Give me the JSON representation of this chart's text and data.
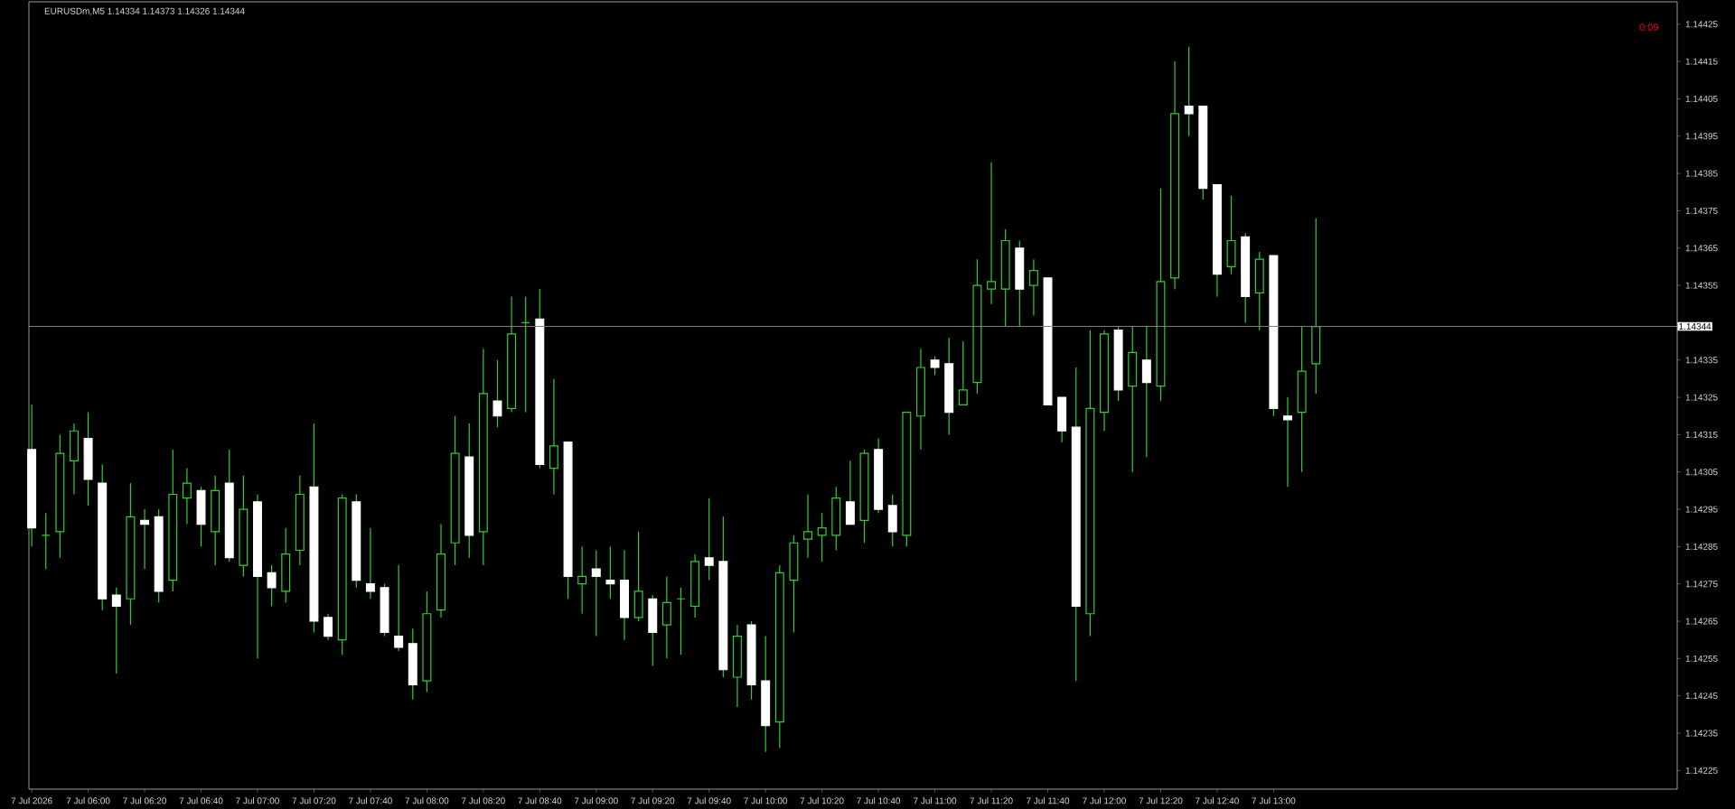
{
  "chart_data": {
    "type": "candlestick",
    "title": "EURUSDm,M5 1.14334 1.14373 1.14326 1.14344",
    "color": "#32cd32",
    "colors": [
      "#ffffff",
      "#32cd32",
      "#32cd32",
      "#32cd32",
      "#ffffff",
      "#ffffff",
      "#ffffff",
      "#32cd32",
      "#ffffff",
      "#ffffff",
      "#32cd32",
      "#32cd32",
      "#ffffff",
      "#32cd32",
      "#ffffff",
      "#32cd32",
      "#ffffff",
      "#ffffff",
      "#32cd32",
      "#32cd32",
      "#ffffff",
      "#ffffff",
      "#32cd32",
      "#ffffff",
      "#ffffff",
      "#ffffff",
      "#ffffff",
      "#ffffff",
      "#32cd32",
      "#32cd32",
      "#32cd32",
      "#ffffff",
      "#32cd32",
      "#ffffff",
      "#32cd32",
      "#32cd32",
      "#ffffff",
      "#32cd32",
      "#ffffff",
      "#32cd32",
      "#ffffff",
      "#ffffff",
      "#ffffff",
      "#32cd32",
      "#ffffff",
      "#32cd32",
      "#32cd32",
      "#32cd32",
      "#ffffff",
      "#ffffff",
      "#32cd32",
      "#ffffff",
      "#ffffff",
      "#32cd32",
      "#32cd32",
      "#32cd32",
      "#32cd32",
      "#32cd32",
      "#ffffff",
      "#32cd32",
      "#ffffff",
      "#ffffff",
      "#32cd32",
      "#32cd32",
      "#ffffff",
      "#ffffff",
      "#32cd32",
      "#32cd32",
      "#32cd32",
      "#32cd32",
      "#ffffff",
      "#32cd32",
      "#ffffff",
      "#ffffff",
      "#ffffff",
      "#32cd32",
      "#32cd32",
      "#ffffff",
      "#32cd32",
      "#ffffff",
      "#32cd32",
      "#32cd32",
      "#ffffff",
      "#ffffff",
      "#ffffff",
      "#32cd32",
      "#ffffff",
      "#32cd32",
      "#ffffff",
      "#ffffff",
      "#32cd32",
      "#32cd32"
    ],
    "x": [
      "2026-07-07T05:40",
      "2026-07-07T05:45",
      "2026-07-07T05:50",
      "2026-07-07T05:55",
      "2026-07-07T06:00",
      "2026-07-07T06:05",
      "2026-07-07T06:10",
      "2026-07-07T06:15",
      "2026-07-07T06:20",
      "2026-07-07T06:25",
      "2026-07-07T06:30",
      "2026-07-07T06:35",
      "2026-07-07T06:40",
      "2026-07-07T06:45",
      "2026-07-07T06:50",
      "2026-07-07T06:55",
      "2026-07-07T07:00",
      "2026-07-07T07:05",
      "2026-07-07T07:10",
      "2026-07-07T07:15",
      "2026-07-07T07:20",
      "2026-07-07T07:25",
      "2026-07-07T07:30",
      "2026-07-07T07:35",
      "2026-07-07T07:40",
      "2026-07-07T07:45",
      "2026-07-07T07:50",
      "2026-07-07T07:55",
      "2026-07-07T08:00",
      "2026-07-07T08:05",
      "2026-07-07T08:10",
      "2026-07-07T08:15",
      "2026-07-07T08:20",
      "2026-07-07T08:25",
      "2026-07-07T08:30",
      "2026-07-07T08:35",
      "2026-07-07T08:40",
      "2026-07-07T08:45",
      "2026-07-07T08:50",
      "2026-07-07T08:55",
      "2026-07-07T09:00",
      "2026-07-07T09:05",
      "2026-07-07T09:10",
      "2026-07-07T09:15",
      "2026-07-07T09:20",
      "2026-07-07T09:25",
      "2026-07-07T09:30",
      "2026-07-07T09:35",
      "2026-07-07T09:40",
      "2026-07-07T09:45",
      "2026-07-07T09:50",
      "2026-07-07T09:55",
      "2026-07-07T10:00",
      "2026-07-07T10:05",
      "2026-07-07T10:10",
      "2026-07-07T10:15",
      "2026-07-07T10:20",
      "2026-07-07T10:25",
      "2026-07-07T10:30",
      "2026-07-07T10:35",
      "2026-07-07T10:40",
      "2026-07-07T10:45",
      "2026-07-07T10:50",
      "2026-07-07T10:55",
      "2026-07-07T11:00",
      "2026-07-07T11:05",
      "2026-07-07T11:10",
      "2026-07-07T11:15",
      "2026-07-07T11:20",
      "2026-07-07T11:25",
      "2026-07-07T11:30",
      "2026-07-07T11:35",
      "2026-07-07T11:40",
      "2026-07-07T11:45",
      "2026-07-07T11:50",
      "2026-07-07T11:55",
      "2026-07-07T12:00",
      "2026-07-07T12:05",
      "2026-07-07T12:10",
      "2026-07-07T12:15",
      "2026-07-07T12:20",
      "2026-07-07T12:25",
      "2026-07-07T12:30",
      "2026-07-07T12:35",
      "2026-07-07T12:40",
      "2026-07-07T12:45",
      "2026-07-07T12:50",
      "2026-07-07T12:55",
      "2026-07-07T13:00",
      "2026-07-07T13:05",
      "2026-07-07T13:10",
      "2026-07-07T13:15"
    ],
    "ohlc": [
      [
        1.14311,
        1.14323,
        1.14285,
        1.1429
      ],
      [
        1.14288,
        1.14294,
        1.14279,
        1.14288
      ],
      [
        1.14289,
        1.14315,
        1.14282,
        1.1431
      ],
      [
        1.14308,
        1.14318,
        1.14299,
        1.14316
      ],
      [
        1.14314,
        1.14321,
        1.14296,
        1.14303
      ],
      [
        1.14302,
        1.14307,
        1.14268,
        1.14271
      ],
      [
        1.14272,
        1.14274,
        1.14251,
        1.14269
      ],
      [
        1.14271,
        1.14302,
        1.14264,
        1.14293
      ],
      [
        1.14292,
        1.14295,
        1.14279,
        1.14291
      ],
      [
        1.14293,
        1.14295,
        1.1427,
        1.14273
      ],
      [
        1.14276,
        1.14311,
        1.14273,
        1.14299
      ],
      [
        1.14298,
        1.14306,
        1.14291,
        1.14302
      ],
      [
        1.143,
        1.14301,
        1.14285,
        1.14291
      ],
      [
        1.14289,
        1.14304,
        1.1428,
        1.143
      ],
      [
        1.14302,
        1.14311,
        1.14281,
        1.14282
      ],
      [
        1.1428,
        1.14304,
        1.14277,
        1.14295
      ],
      [
        1.14297,
        1.14299,
        1.14255,
        1.14277
      ],
      [
        1.14278,
        1.1428,
        1.14269,
        1.14274
      ],
      [
        1.14273,
        1.1429,
        1.1427,
        1.14283
      ],
      [
        1.14284,
        1.14304,
        1.1428,
        1.14299
      ],
      [
        1.14301,
        1.14318,
        1.14262,
        1.14265
      ],
      [
        1.14266,
        1.14267,
        1.1426,
        1.14261
      ],
      [
        1.1426,
        1.14299,
        1.14256,
        1.14298
      ],
      [
        1.14297,
        1.14299,
        1.14274,
        1.14276
      ],
      [
        1.14275,
        1.1429,
        1.14271,
        1.14273
      ],
      [
        1.14274,
        1.14275,
        1.14261,
        1.14262
      ],
      [
        1.14261,
        1.1428,
        1.14257,
        1.14258
      ],
      [
        1.14259,
        1.14263,
        1.14244,
        1.14248
      ],
      [
        1.14249,
        1.14273,
        1.14246,
        1.14267
      ],
      [
        1.14268,
        1.14291,
        1.14266,
        1.14283
      ],
      [
        1.14286,
        1.1432,
        1.1428,
        1.1431
      ],
      [
        1.14309,
        1.14318,
        1.14282,
        1.14288
      ],
      [
        1.14289,
        1.14338,
        1.1428,
        1.14326
      ],
      [
        1.14324,
        1.14335,
        1.14317,
        1.1432
      ],
      [
        1.14322,
        1.14352,
        1.14321,
        1.14342
      ],
      [
        1.14345,
        1.14352,
        1.14321,
        1.14345
      ],
      [
        1.14346,
        1.14354,
        1.14306,
        1.14307
      ],
      [
        1.14306,
        1.1433,
        1.14299,
        1.14312
      ],
      [
        1.14313,
        1.14313,
        1.14271,
        1.14277
      ],
      [
        1.14275,
        1.14285,
        1.14267,
        1.14277
      ],
      [
        1.14279,
        1.14284,
        1.14261,
        1.14277
      ],
      [
        1.14276,
        1.14285,
        1.14271,
        1.14275
      ],
      [
        1.14276,
        1.14284,
        1.1426,
        1.14266
      ],
      [
        1.14266,
        1.14289,
        1.14265,
        1.14273
      ],
      [
        1.14271,
        1.14272,
        1.14253,
        1.14262
      ],
      [
        1.14264,
        1.14277,
        1.14255,
        1.1427
      ],
      [
        1.14271,
        1.14274,
        1.14256,
        1.14271
      ],
      [
        1.14269,
        1.14283,
        1.14266,
        1.14281
      ],
      [
        1.14282,
        1.14298,
        1.14276,
        1.1428
      ],
      [
        1.14281,
        1.14293,
        1.1425,
        1.14252
      ],
      [
        1.1425,
        1.14264,
        1.14242,
        1.14261
      ],
      [
        1.14264,
        1.14265,
        1.14244,
        1.14248
      ],
      [
        1.14249,
        1.14261,
        1.1423,
        1.14237
      ],
      [
        1.14238,
        1.1428,
        1.14231,
        1.14278
      ],
      [
        1.14276,
        1.14288,
        1.14262,
        1.14286
      ],
      [
        1.14287,
        1.14299,
        1.14282,
        1.14289
      ],
      [
        1.14288,
        1.14294,
        1.14281,
        1.1429
      ],
      [
        1.14288,
        1.14301,
        1.14284,
        1.14298
      ],
      [
        1.14297,
        1.14308,
        1.14291,
        1.14291
      ],
      [
        1.14292,
        1.14311,
        1.14286,
        1.1431
      ],
      [
        1.14311,
        1.14314,
        1.14294,
        1.14295
      ],
      [
        1.14296,
        1.14299,
        1.14285,
        1.14289
      ],
      [
        1.14288,
        1.14321,
        1.14285,
        1.14321
      ],
      [
        1.1432,
        1.14338,
        1.14311,
        1.14333
      ],
      [
        1.14335,
        1.14336,
        1.14331,
        1.14333
      ],
      [
        1.14334,
        1.14341,
        1.14315,
        1.14321
      ],
      [
        1.14323,
        1.1434,
        1.14323,
        1.14327
      ],
      [
        1.14329,
        1.14362,
        1.14326,
        1.14355
      ],
      [
        1.14354,
        1.14388,
        1.1435,
        1.14356
      ],
      [
        1.14354,
        1.1437,
        1.14344,
        1.14367
      ],
      [
        1.14365,
        1.14367,
        1.14344,
        1.14354
      ],
      [
        1.14355,
        1.14362,
        1.14347,
        1.14359
      ],
      [
        1.14357,
        1.14357,
        1.14323,
        1.14323
      ],
      [
        1.14325,
        1.14325,
        1.14313,
        1.14316
      ],
      [
        1.14317,
        1.14333,
        1.14249,
        1.14269
      ],
      [
        1.14267,
        1.14343,
        1.14261,
        1.14322
      ],
      [
        1.14321,
        1.14343,
        1.14316,
        1.14342
      ],
      [
        1.14343,
        1.14344,
        1.14324,
        1.14327
      ],
      [
        1.14328,
        1.14344,
        1.14305,
        1.14337
      ],
      [
        1.14335,
        1.14344,
        1.14309,
        1.14329
      ],
      [
        1.14328,
        1.14381,
        1.14324,
        1.14356
      ],
      [
        1.14357,
        1.14415,
        1.14354,
        1.14401
      ],
      [
        1.14403,
        1.14419,
        1.14395,
        1.14401
      ],
      [
        1.14403,
        1.14403,
        1.14378,
        1.14381
      ],
      [
        1.14382,
        1.14382,
        1.14352,
        1.14358
      ],
      [
        1.1436,
        1.14379,
        1.14358,
        1.14367
      ],
      [
        1.14368,
        1.14369,
        1.14345,
        1.14352
      ],
      [
        1.14353,
        1.14364,
        1.14343,
        1.14362
      ],
      [
        1.14363,
        1.14363,
        1.1432,
        1.14322
      ],
      [
        1.1432,
        1.14325,
        1.14301,
        1.14319
      ],
      [
        1.14321,
        1.14344,
        1.14305,
        1.14332
      ],
      [
        1.14334,
        1.14373,
        1.14326,
        1.14344
      ]
    ],
    "xlim": [
      "2026-07-07T05:39",
      "2026-07-07T15:23"
    ],
    "xticks": [
      {
        "value": "2026-07-07T05:40",
        "label": "7 Jul 2026"
      },
      {
        "value": "2026-07-07T06:00",
        "label": "7 Jul 06:00"
      },
      {
        "value": "2026-07-07T06:20",
        "label": "7 Jul 06:20"
      },
      {
        "value": "2026-07-07T06:40",
        "label": "7 Jul 06:40"
      },
      {
        "value": "2026-07-07T07:00",
        "label": "7 Jul 07:00"
      },
      {
        "value": "2026-07-07T07:20",
        "label": "7 Jul 07:20"
      },
      {
        "value": "2026-07-07T07:40",
        "label": "7 Jul 07:40"
      },
      {
        "value": "2026-07-07T08:00",
        "label": "7 Jul 08:00"
      },
      {
        "value": "2026-07-07T08:20",
        "label": "7 Jul 08:20"
      },
      {
        "value": "2026-07-07T08:40",
        "label": "7 Jul 08:40"
      },
      {
        "value": "2026-07-07T09:00",
        "label": "7 Jul 09:00"
      },
      {
        "value": "2026-07-07T09:20",
        "label": "7 Jul 09:20"
      },
      {
        "value": "2026-07-07T09:40",
        "label": "7 Jul 09:40"
      },
      {
        "value": "2026-07-07T10:00",
        "label": "7 Jul 10:00"
      },
      {
        "value": "2026-07-07T10:20",
        "label": "7 Jul 10:20"
      },
      {
        "value": "2026-07-07T10:40",
        "label": "7 Jul 10:40"
      },
      {
        "value": "2026-07-07T11:00",
        "label": "7 Jul 11:00"
      },
      {
        "value": "2026-07-07T11:20",
        "label": "7 Jul 11:20"
      },
      {
        "value": "2026-07-07T11:40",
        "label": "7 Jul 11:40"
      },
      {
        "value": "2026-07-07T12:00",
        "label": "7 Jul 12:00"
      },
      {
        "value": "2026-07-07T12:20",
        "label": "7 Jul 12:20"
      },
      {
        "value": "2026-07-07T12:40",
        "label": "7 Jul 12:40"
      },
      {
        "value": "2026-07-07T13:00",
        "label": "7 Jul 13:00"
      }
    ],
    "ylim": [
      1.1422,
      1.14431
    ],
    "yticks": [
      1.14425,
      1.14415,
      1.14405,
      1.14395,
      1.14385,
      1.14375,
      1.14365,
      1.14355,
      {
        "value": 1.14345,
        "label": null
      },
      1.14335,
      1.14325,
      1.14315,
      1.14305,
      1.14295,
      1.14285,
      1.14275,
      1.14265,
      1.14255,
      1.14245,
      1.14235,
      1.14225
    ],
    "ref_lines": [
      {
        "axis": "y",
        "value": 1.14344,
        "label": "1.14344",
        "color": "#808080"
      }
    ],
    "annotations": [
      "0:09"
    ],
    "grid": false
  }
}
